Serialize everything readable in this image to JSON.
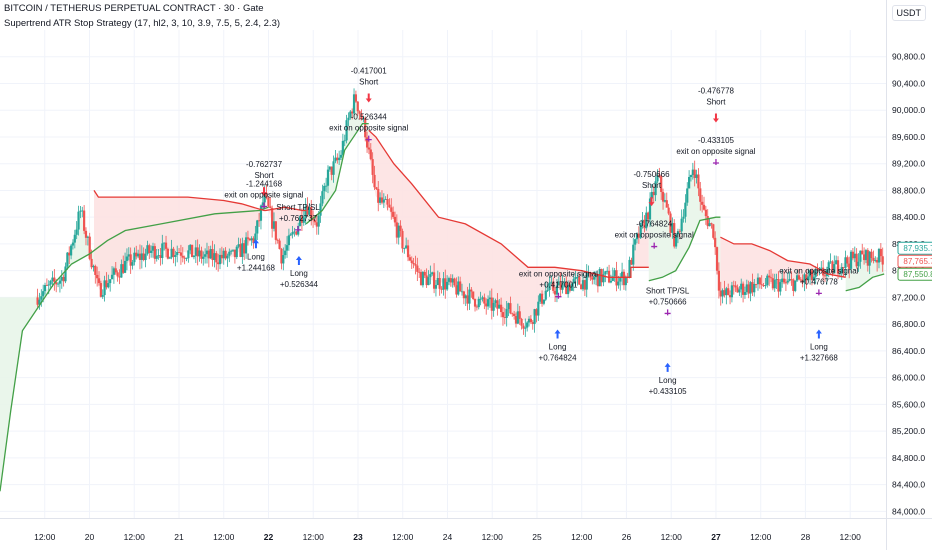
{
  "header": {
    "title": "BITCOIN / TETHERUS PERPETUAL CONTRACT · 30 · Gate",
    "strategy": "Supertrend ATR Stop Strategy (17, hl2, 3, 10, 3.9, 7.5, 5, 2.4, 2.3)"
  },
  "currency": "USDT",
  "colors": {
    "up": "#26a69a",
    "down": "#ef5350",
    "trend_up": "#43a047",
    "trend_down": "#e53935",
    "fill_up": "#e8f5e9",
    "fill_down": "#fde2e2",
    "buy_arrow": "#2962ff",
    "sell_arrow": "#f23645",
    "marker": "#9c27b0",
    "grid": "#f0f3fa",
    "axis_text": "#131722"
  },
  "chart_data": {
    "type": "candlestick",
    "ylim": [
      83900,
      91200
    ],
    "y_ticks": [
      84000,
      84400,
      84800,
      85200,
      85600,
      86000,
      86400,
      86800,
      87200,
      87600,
      88000,
      88400,
      88800,
      89200,
      89600,
      90000,
      90400,
      90800
    ],
    "y_tick_labels": [
      "84,000.0",
      "84,400.0",
      "84,800.0",
      "85,200.0",
      "85,600.0",
      "86,000.0",
      "86,400.0",
      "86,800.0",
      "87,200.0",
      "87,600.0",
      "88,000.0",
      "88,400.0",
      "88,800.0",
      "89,200.0",
      "89,600.0",
      "90,000.0",
      "90,400.0",
      "90,800.0"
    ],
    "x_range": [
      19,
      28.9
    ],
    "x_ticks": [
      {
        "t": 19.5,
        "label": "12:00",
        "bold": false
      },
      {
        "t": 20,
        "label": "20",
        "bold": false
      },
      {
        "t": 20.5,
        "label": "12:00",
        "bold": false
      },
      {
        "t": 21,
        "label": "21",
        "bold": false
      },
      {
        "t": 21.5,
        "label": "12:00",
        "bold": false
      },
      {
        "t": 22,
        "label": "22",
        "bold": true
      },
      {
        "t": 22.5,
        "label": "12:00",
        "bold": false
      },
      {
        "t": 23,
        "label": "23",
        "bold": true
      },
      {
        "t": 23.5,
        "label": "12:00",
        "bold": false
      },
      {
        "t": 24,
        "label": "24",
        "bold": false
      },
      {
        "t": 24.5,
        "label": "12:00",
        "bold": false
      },
      {
        "t": 25,
        "label": "25",
        "bold": false
      },
      {
        "t": 25.5,
        "label": "12:00",
        "bold": false
      },
      {
        "t": 26,
        "label": "26",
        "bold": false
      },
      {
        "t": 26.5,
        "label": "12:00",
        "bold": false
      },
      {
        "t": 27,
        "label": "27",
        "bold": true
      },
      {
        "t": 27.5,
        "label": "12:00",
        "bold": false
      },
      {
        "t": 28,
        "label": "28",
        "bold": false
      },
      {
        "t": 28.5,
        "label": "12:00",
        "bold": false
      }
    ],
    "price_path": [
      [
        19.4,
        87200
      ],
      [
        19.7,
        87500
      ],
      [
        19.9,
        88500
      ],
      [
        20.1,
        87300
      ],
      [
        20.4,
        87700
      ],
      [
        20.7,
        87900
      ],
      [
        21.0,
        87900
      ],
      [
        21.3,
        87800
      ],
      [
        21.6,
        87800
      ],
      [
        21.85,
        88100
      ],
      [
        21.95,
        88700
      ],
      [
        22.05,
        88300
      ],
      [
        22.15,
        87800
      ],
      [
        22.3,
        88200
      ],
      [
        22.42,
        88600
      ],
      [
        22.55,
        88300
      ],
      [
        22.65,
        89000
      ],
      [
        22.8,
        89300
      ],
      [
        22.9,
        89900
      ],
      [
        22.97,
        90200
      ],
      [
        23.08,
        89700
      ],
      [
        23.2,
        88700
      ],
      [
        23.35,
        88500
      ],
      [
        23.5,
        88000
      ],
      [
        23.7,
        87500
      ],
      [
        24.0,
        87400
      ],
      [
        24.4,
        87100
      ],
      [
        24.7,
        87000
      ],
      [
        24.9,
        86800
      ],
      [
        25.1,
        87300
      ],
      [
        25.4,
        87400
      ],
      [
        25.7,
        87500
      ],
      [
        26.0,
        87500
      ],
      [
        26.1,
        88000
      ],
      [
        26.25,
        88500
      ],
      [
        26.35,
        89000
      ],
      [
        26.45,
        88500
      ],
      [
        26.55,
        88000
      ],
      [
        26.65,
        88600
      ],
      [
        26.75,
        89200
      ],
      [
        26.85,
        88500
      ],
      [
        26.97,
        88200
      ],
      [
        27.05,
        87200
      ],
      [
        27.2,
        87300
      ],
      [
        27.5,
        87400
      ],
      [
        27.8,
        87400
      ],
      [
        28.1,
        87500
      ],
      [
        28.4,
        87700
      ],
      [
        28.6,
        87800
      ],
      [
        28.88,
        87800
      ]
    ],
    "supertrend": [
      {
        "dir": "up",
        "points": [
          [
            19.0,
            84300
          ],
          [
            19.12,
            85500
          ],
          [
            19.25,
            86700
          ],
          [
            19.45,
            87100
          ],
          [
            19.6,
            87400
          ],
          [
            19.8,
            87700
          ],
          [
            20.0,
            87850
          ],
          [
            20.2,
            88050
          ],
          [
            20.4,
            88200
          ],
          [
            20.8,
            88300
          ],
          [
            21.4,
            88450
          ],
          [
            21.9,
            88500
          ],
          [
            22.0,
            88550
          ]
        ]
      },
      {
        "dir": "down",
        "points": [
          [
            20.05,
            88800
          ],
          [
            20.1,
            88700
          ],
          [
            21.1,
            88700
          ],
          [
            21.5,
            88650
          ],
          [
            21.7,
            88600
          ],
          [
            21.95,
            88500
          ],
          [
            21.97,
            88500
          ],
          [
            22.18,
            88550
          ],
          [
            22.38,
            88500
          ],
          [
            22.42,
            88500
          ]
        ]
      },
      {
        "dir": "up",
        "points": [
          [
            22.42,
            88300
          ],
          [
            22.6,
            88500
          ],
          [
            22.75,
            88800
          ],
          [
            22.85,
            89400
          ],
          [
            23.0,
            89700
          ],
          [
            23.05,
            89800
          ],
          [
            23.12,
            89800
          ]
        ]
      },
      {
        "dir": "down",
        "points": [
          [
            23.12,
            89700
          ],
          [
            23.2,
            89600
          ],
          [
            23.4,
            89200
          ],
          [
            23.6,
            88900
          ],
          [
            23.9,
            88400
          ],
          [
            24.2,
            88300
          ],
          [
            24.6,
            88000
          ],
          [
            24.9,
            87650
          ],
          [
            25.2,
            87650
          ],
          [
            25.5,
            87600
          ],
          [
            25.8,
            87500
          ],
          [
            26.05,
            87500
          ],
          [
            26.05,
            87650
          ],
          [
            26.25,
            87650
          ]
        ]
      },
      {
        "dir": "up",
        "points": [
          [
            26.25,
            87450
          ],
          [
            26.4,
            87500
          ],
          [
            26.55,
            87600
          ],
          [
            26.7,
            87950
          ],
          [
            26.82,
            88350
          ],
          [
            27.0,
            88400
          ],
          [
            27.05,
            88400
          ]
        ]
      },
      {
        "dir": "down",
        "points": [
          [
            27.05,
            88100
          ],
          [
            27.2,
            88000
          ],
          [
            27.4,
            88000
          ],
          [
            27.6,
            87900
          ],
          [
            27.8,
            87750
          ],
          [
            28.05,
            87700
          ],
          [
            28.25,
            87550
          ],
          [
            28.45,
            87500
          ]
        ]
      },
      {
        "dir": "up",
        "points": [
          [
            28.45,
            87300
          ],
          [
            28.6,
            87350
          ],
          [
            28.75,
            87500
          ],
          [
            28.88,
            87550
          ]
        ]
      }
    ],
    "annotations": [
      {
        "type": "buy",
        "t": 21.86,
        "price": 87950,
        "lines": [
          "Long",
          "+1.244168"
        ]
      },
      {
        "type": "sell",
        "t": 21.95,
        "price": 88850,
        "lines": [
          "-0.762737",
          "Short"
        ]
      },
      {
        "type": "exit",
        "t": 21.95,
        "price": 88650,
        "lines": [
          "-1.244168",
          "exit on opposite signal"
        ]
      },
      {
        "type": "exit",
        "t": 22.33,
        "price": 88300,
        "lines": [
          "Short TP/SL",
          "+0.762737"
        ]
      },
      {
        "type": "buy",
        "t": 22.34,
        "price": 87700,
        "lines": [
          "Long",
          "+0.526344"
        ]
      },
      {
        "type": "sell",
        "t": 23.12,
        "price": 90250,
        "lines": [
          "-0.417001",
          "Short"
        ]
      },
      {
        "type": "exit",
        "t": 23.12,
        "price": 89650,
        "lines": [
          "-0.526344",
          "exit on opposite signal"
        ]
      },
      {
        "type": "exit",
        "t": 25.24,
        "price": 87300,
        "lines": [
          "exit on opposite signal",
          "+0.417001"
        ]
      },
      {
        "type": "buy",
        "t": 25.23,
        "price": 86600,
        "lines": [
          "Long",
          "+0.764824"
        ]
      },
      {
        "type": "sell",
        "t": 26.28,
        "price": 88700,
        "lines": [
          "-0.750666",
          "Short"
        ]
      },
      {
        "type": "exit",
        "t": 26.31,
        "price": 88050,
        "lines": [
          "-0.764824",
          "exit on opposite signal"
        ]
      },
      {
        "type": "exit",
        "t": 26.46,
        "price": 87050,
        "lines": [
          "Short TP/SL",
          "+0.750666"
        ]
      },
      {
        "type": "buy",
        "t": 26.46,
        "price": 86100,
        "lines": [
          "Long",
          "+0.433105"
        ]
      },
      {
        "type": "sell",
        "t": 27.0,
        "price": 89950,
        "lines": [
          "-0.476778",
          "Short"
        ]
      },
      {
        "type": "exit",
        "t": 27.0,
        "price": 89300,
        "lines": [
          "-0.433105",
          "exit on opposite signal"
        ]
      },
      {
        "type": "exit",
        "t": 28.15,
        "price": 87350,
        "lines": [
          "exit on opposite signal",
          "+0.476778"
        ]
      },
      {
        "type": "buy",
        "t": 28.15,
        "price": 86600,
        "lines": [
          "Long",
          "+1.327668"
        ]
      }
    ],
    "price_labels": [
      {
        "value": 87935.7,
        "text": "87,935.7",
        "color": "#26a69a"
      },
      {
        "value": 87765.7,
        "text": "87,765.7",
        "color": "#ef5350"
      },
      {
        "value": 87550.8,
        "text": "87,550.8",
        "color": "#43a047"
      }
    ]
  }
}
